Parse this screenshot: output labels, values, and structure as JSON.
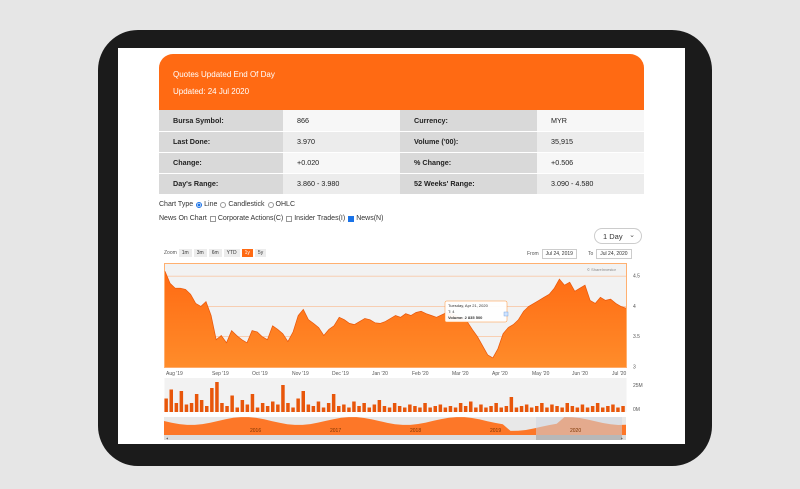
{
  "header": {
    "line1": "Quotes Updated End Of Day",
    "line2": "Updated: 24 Jul 2020"
  },
  "quotes": [
    {
      "l1": "Bursa Symbol:",
      "v1": "866",
      "l2": "Currency:",
      "v2": "MYR"
    },
    {
      "l1": "Last Done:",
      "v1": "3.970",
      "l2": "Volume ('00):",
      "v2": "35,915"
    },
    {
      "l1": "Change:",
      "v1": "+0.020",
      "l2": "% Change:",
      "v2": "+0.506"
    },
    {
      "l1": "Day's Range:",
      "v1": "3.860 - 3.980",
      "l2": "52 Weeks' Range:",
      "v2": "3.090 - 4.580"
    }
  ],
  "chart_type": {
    "label": "Chart Type",
    "options": [
      "Line",
      "Candlestick",
      "OHLC"
    ],
    "selected": "Line"
  },
  "news": {
    "label": "News On Chart",
    "options": [
      "Corporate Actions(C)",
      "Insider Trades(I)",
      "News(N)"
    ],
    "checked": [
      "News(N)"
    ]
  },
  "period_select": {
    "value": "1 Day"
  },
  "zoom": {
    "label": "Zoom",
    "buttons": [
      "1m",
      "3m",
      "6m",
      "YTD",
      "1y",
      "5y"
    ],
    "active": "1y"
  },
  "range": {
    "from_label": "From",
    "from": "Jul 24, 2019",
    "to_label": "To",
    "to": "Jul 24, 2020"
  },
  "colors": {
    "accent": "#ff6a13",
    "header_bg": "#ff6a13",
    "label_bg": "#d9d9d9"
  },
  "chart_data": {
    "type": "area",
    "credit": "© ShareInvestor",
    "x_labels": [
      "Aug '19",
      "Sep '19",
      "Oct '19",
      "Nov '19",
      "Dec '19",
      "Jan '20",
      "Feb '20",
      "Mar '20",
      "Apr '20",
      "May '20",
      "Jun '20",
      "Jul '20"
    ],
    "y_ticks": [
      3,
      3.5,
      4,
      4.5
    ],
    "ylim": [
      3,
      4.7
    ],
    "price": [
      4.58,
      4.38,
      4.3,
      4.3,
      4.28,
      4.2,
      4.05,
      4.0,
      4.08,
      3.85,
      3.45,
      3.52,
      3.4,
      3.6,
      3.52,
      3.45,
      3.4,
      3.6,
      3.58,
      3.5,
      3.45,
      3.68,
      3.62,
      3.55,
      3.42,
      3.58,
      3.85,
      3.95,
      3.78,
      3.72,
      3.65,
      3.52,
      3.62,
      3.68,
      3.82,
      3.78,
      3.72,
      3.7,
      3.75,
      3.8,
      3.78,
      3.73,
      3.72,
      3.75,
      3.8,
      3.85,
      3.82,
      3.88,
      3.85,
      3.9,
      3.92,
      3.88,
      3.85,
      3.82,
      3.86,
      3.9,
      3.88,
      3.84,
      3.8,
      3.75,
      3.62,
      3.5,
      3.35,
      3.2,
      3.15,
      3.3,
      3.55,
      3.65,
      3.7,
      3.78,
      3.92,
      4.0,
      4.05,
      4.1,
      4.15,
      4.2,
      4.3,
      4.45,
      4.35,
      4.4,
      4.25,
      4.3,
      4.35,
      4.1,
      4.05,
      4.15,
      4.1,
      4.12,
      4.05,
      4.0,
      3.97
    ],
    "volume": [
      9,
      15,
      6,
      14,
      5,
      6,
      12,
      8,
      4,
      16,
      20,
      6,
      4,
      11,
      3,
      8,
      5,
      12,
      3,
      6,
      4,
      7,
      5,
      18,
      6,
      3,
      9,
      14,
      5,
      4,
      7,
      3,
      6,
      12,
      4,
      5,
      3,
      7,
      4,
      6,
      3,
      5,
      8,
      4,
      3,
      6,
      4,
      3,
      5,
      4,
      3,
      6,
      3,
      4,
      5,
      3,
      4,
      3,
      6,
      4,
      7,
      3,
      5,
      3,
      4,
      6,
      3,
      4,
      10,
      3,
      4,
      5,
      3,
      4,
      6,
      3,
      5,
      4,
      3,
      6,
      4,
      3,
      5,
      3,
      4,
      6,
      3,
      4,
      5,
      3,
      4
    ],
    "volume_ticks": [
      "25M",
      "0M"
    ],
    "tooltip": {
      "date": "Tuesday, Apr 21, 2020",
      "marker": "T: 4",
      "volume": "Volume: 2 835 500"
    },
    "navigator_labels": [
      "2016",
      "2017",
      "2018",
      "2019",
      "2020"
    ]
  }
}
